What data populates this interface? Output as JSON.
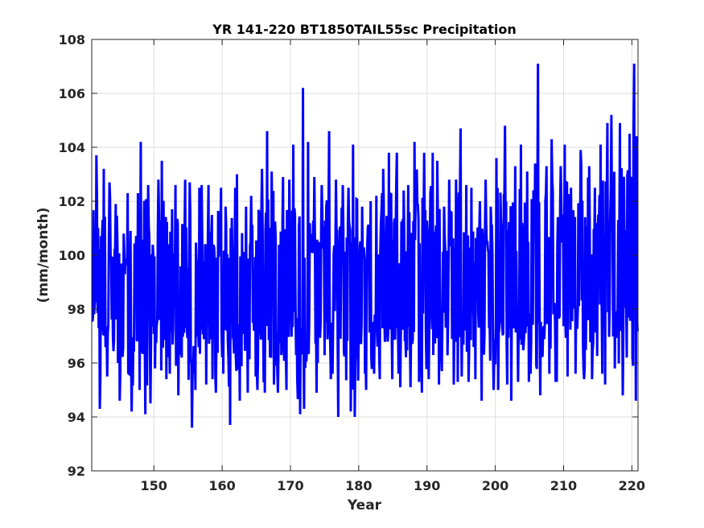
{
  "chart_data": {
    "type": "line",
    "title": "YR 141-220 BT1850TAIL55sc Precipitation",
    "xlabel": "Year",
    "ylabel": "(mm/month)",
    "xlim": [
      140.9,
      220.9
    ],
    "ylim": [
      92,
      108
    ],
    "xticks": [
      150,
      160,
      170,
      180,
      190,
      200,
      210,
      220
    ],
    "yticks": [
      92,
      94,
      96,
      98,
      100,
      102,
      104,
      106,
      108
    ],
    "grid": true,
    "legend": "none",
    "series": [
      {
        "color": "#0000ff",
        "sampling": "monthly",
        "x_start": 141.0,
        "x_end": 220.9,
        "envelope": {
          "x": [
            141,
            142,
            143,
            144,
            145,
            146,
            147,
            148,
            149,
            150,
            151,
            152,
            153,
            154,
            155,
            156,
            157,
            158,
            159,
            160,
            161,
            162,
            163,
            164,
            165,
            166,
            167,
            168,
            169,
            170,
            171,
            172,
            173,
            174,
            175,
            176,
            177,
            178,
            179,
            180,
            181,
            182,
            183,
            184,
            185,
            186,
            187,
            188,
            189,
            190,
            191,
            192,
            193,
            194,
            195,
            196,
            197,
            198,
            199,
            200,
            201,
            202,
            203,
            204,
            205,
            206,
            207,
            208,
            209,
            210,
            211,
            212,
            213,
            214,
            215,
            216,
            217,
            218,
            219,
            220
          ],
          "max": [
            103.7,
            103.2,
            102.7,
            101.9,
            100.8,
            102.3,
            102.3,
            104.2,
            102.6,
            102.8,
            103.5,
            101.7,
            102.6,
            102.8,
            102.7,
            102.5,
            102.6,
            102.6,
            102.5,
            101.8,
            102.5,
            103.0,
            101.8,
            102.2,
            103.2,
            104.6,
            103.1,
            102.9,
            102.8,
            104.1,
            106.2,
            104.2,
            102.9,
            102.6,
            104.6,
            102.8,
            102.6,
            102.5,
            104.1,
            101.8,
            102.0,
            102.2,
            103.2,
            103.8,
            103.8,
            102.4,
            102.6,
            104.2,
            103.8,
            103.8,
            103.5,
            101.8,
            102.8,
            104.7,
            102.6,
            102.5,
            102.0,
            102.8,
            101.8,
            103.6,
            104.8,
            103.3,
            104.1,
            103.1,
            103.4,
            107.1,
            103.3,
            104.3,
            103.3,
            104.1,
            102.5,
            103.9,
            103.3,
            102.5,
            104.1,
            104.9,
            105.2,
            104.9,
            104.5,
            107.1
          ],
          "min": [
            97.3,
            94.3,
            95.5,
            96.0,
            94.6,
            94.2,
            95.0,
            94.1,
            94.5,
            95.8,
            95.4,
            95.6,
            94.8,
            96.2,
            93.6,
            95.0,
            95.2,
            95.4,
            94.9,
            95.6,
            93.7,
            94.6,
            94.9,
            95.5,
            95.0,
            94.9,
            95.2,
            94.9,
            95.0,
            96.3,
            94.1,
            94.3,
            94.9,
            96.0,
            95.4,
            95.6,
            94.0,
            94.2,
            94.0,
            95.6,
            95.0,
            95.6,
            95.4,
            95.4,
            95.6,
            95.1,
            95.1,
            95.3,
            94.9,
            95.4,
            95.2,
            95.7,
            95.2,
            95.3,
            95.5,
            95.3,
            95.4,
            94.6,
            95.0,
            95.0,
            95.2,
            94.6,
            95.3,
            95.3,
            95.6,
            94.8,
            95.6,
            95.3,
            95.3,
            95.5,
            95.6,
            95.8,
            95.4,
            95.4,
            95.6,
            95.2,
            95.8,
            94.8,
            96.2,
            94.6
          ],
          "mean": [
            98.8,
            98.6,
            98.5,
            98.4,
            98.3,
            98.4,
            98.5,
            98.6,
            98.5,
            98.4,
            98.5,
            98.5,
            98.4,
            98.4,
            98.3,
            98.4,
            98.5,
            98.5,
            98.4,
            98.4,
            98.4,
            98.5,
            98.6,
            98.5,
            98.6,
            98.7,
            98.6,
            98.5,
            98.6,
            98.7,
            98.8,
            98.7,
            98.6,
            98.6,
            98.7,
            98.6,
            98.6,
            98.7,
            98.7,
            98.6,
            98.7,
            98.7,
            98.8,
            98.8,
            98.8,
            98.8,
            98.8,
            98.9,
            98.9,
            98.9,
            98.9,
            98.9,
            99.0,
            99.0,
            98.9,
            99.0,
            99.0,
            99.0,
            99.0,
            99.1,
            99.1,
            99.0,
            99.1,
            99.1,
            99.1,
            99.2,
            99.1,
            99.2,
            99.2,
            99.2,
            99.2,
            99.2,
            99.2,
            99.2,
            99.3,
            99.3,
            99.3,
            99.3,
            99.3,
            99.3
          ]
        }
      }
    ]
  }
}
